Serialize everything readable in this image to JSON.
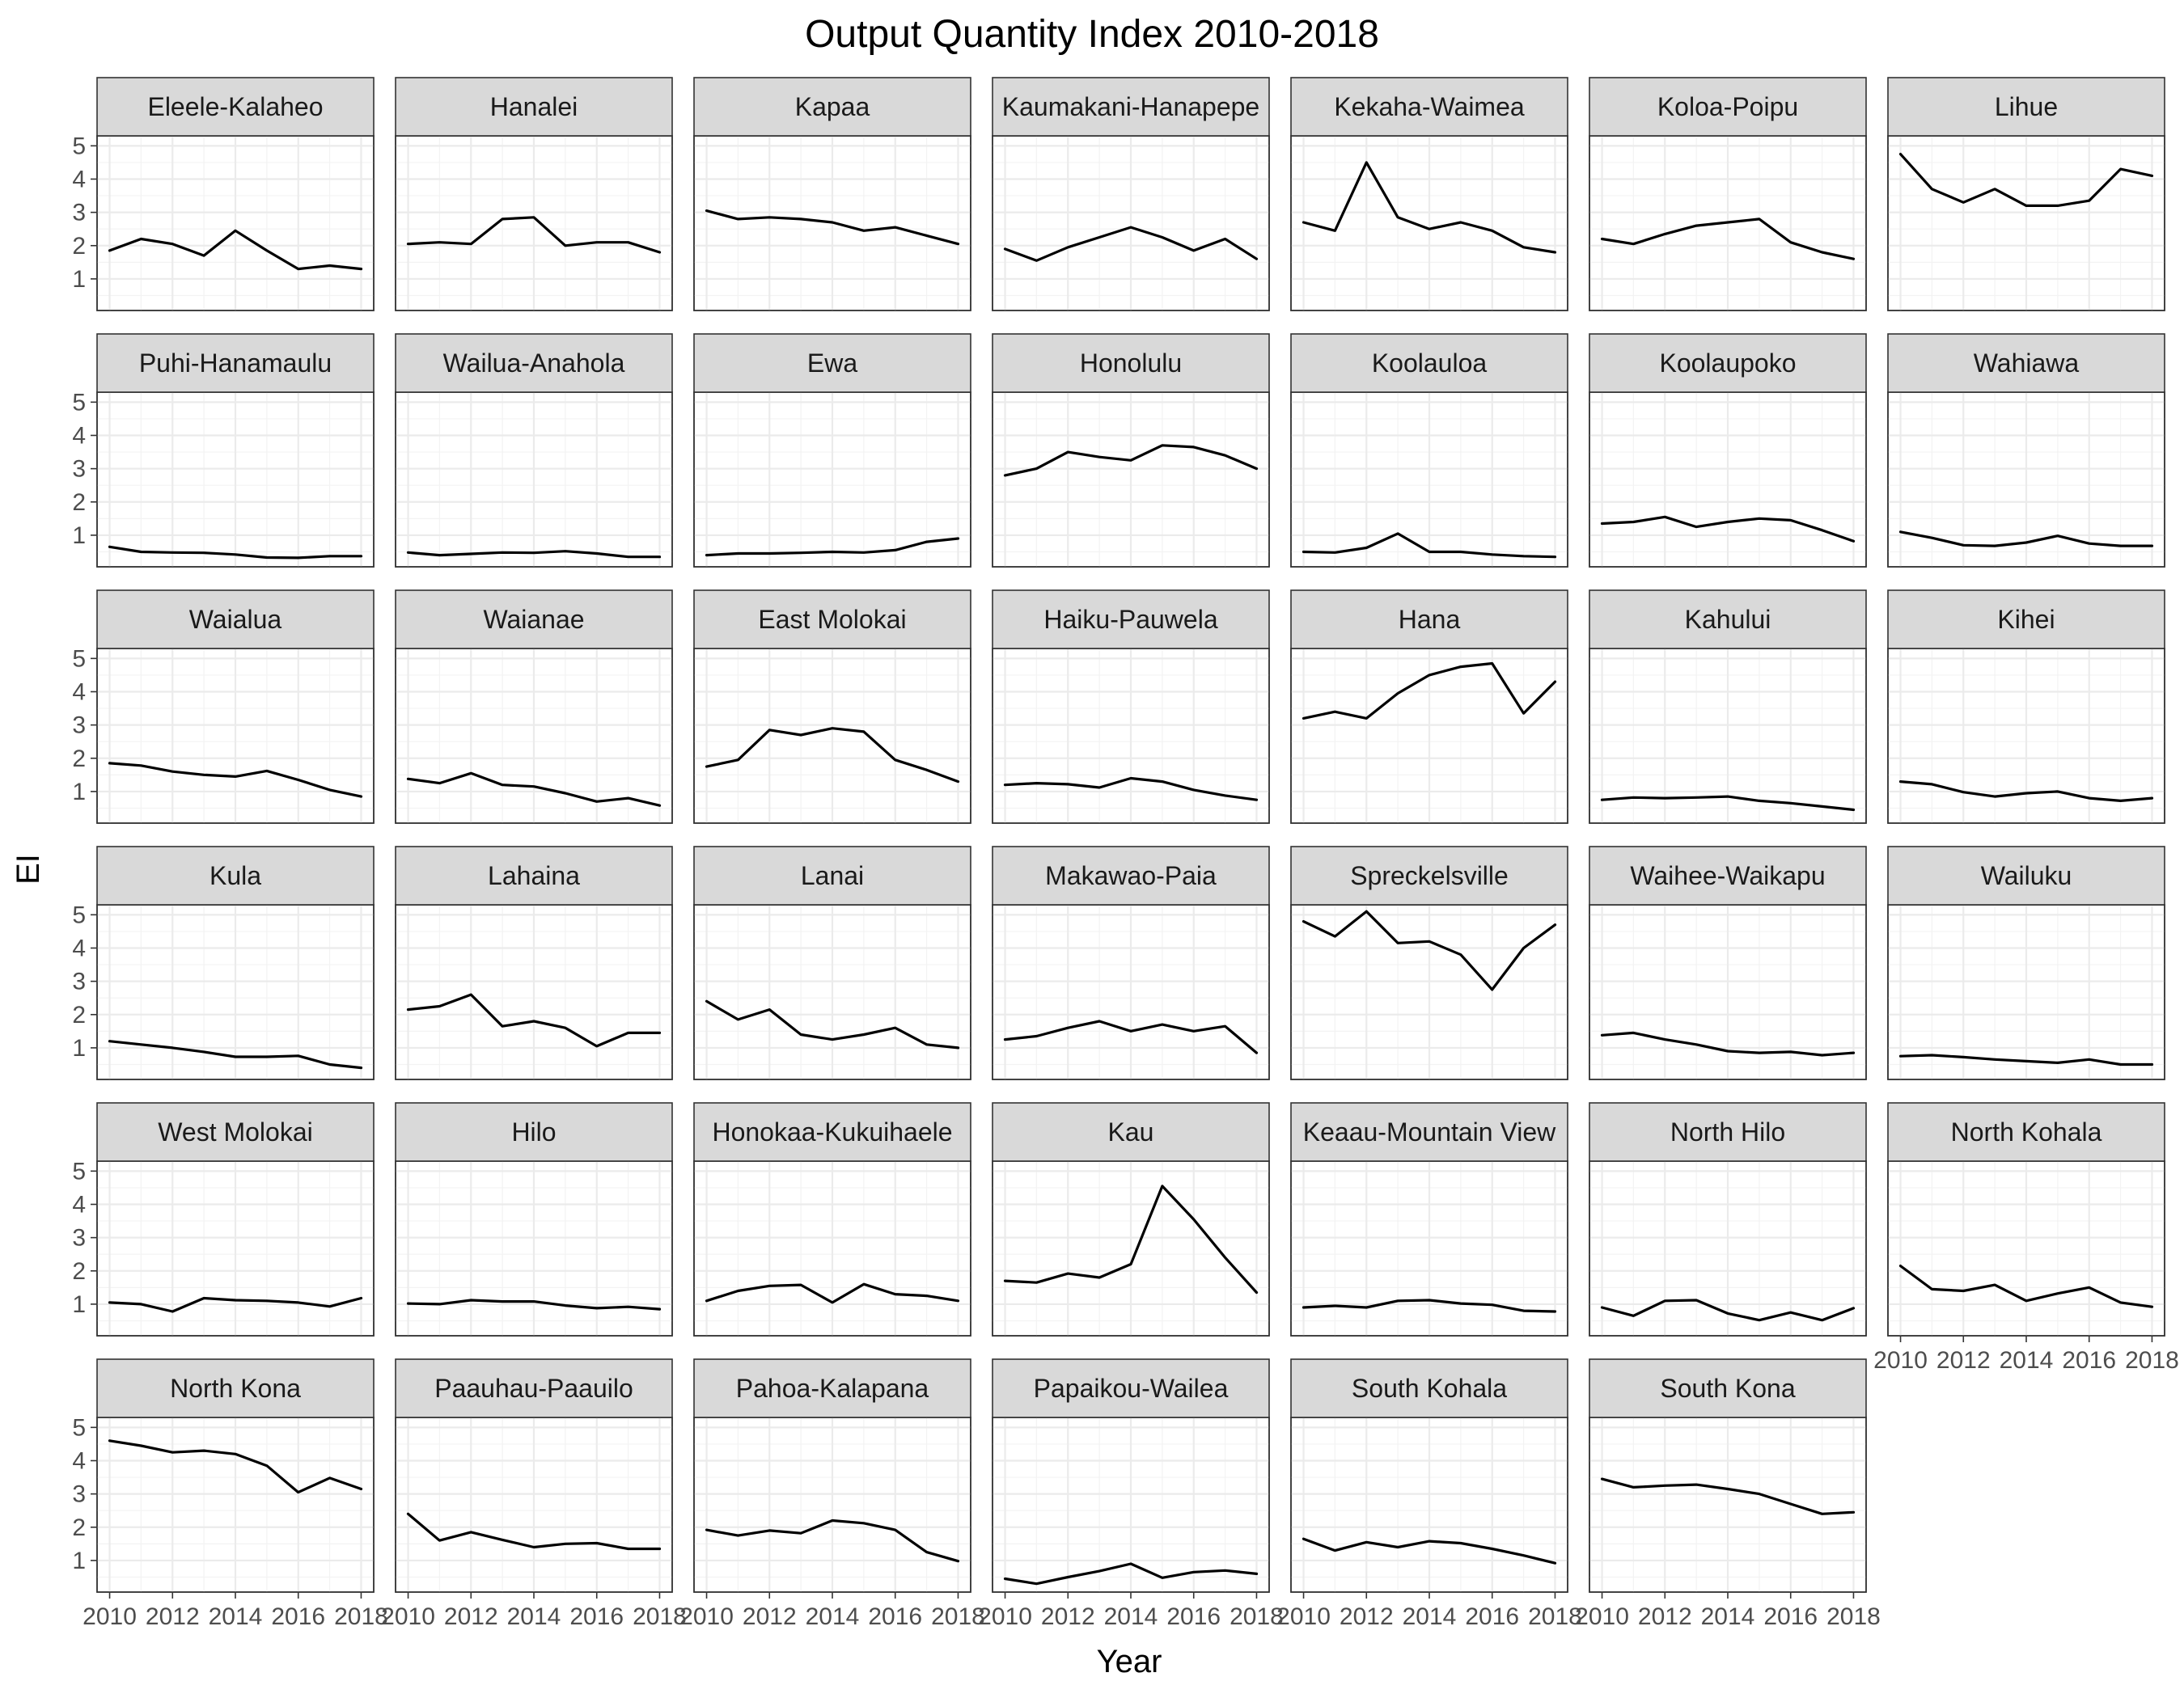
{
  "chart_data": {
    "type": "line",
    "title": "Output Quantity Index 2010-2018",
    "xlabel": "Year",
    "ylabel": "EI",
    "x": [
      2010,
      2011,
      2012,
      2013,
      2014,
      2015,
      2016,
      2017,
      2018
    ],
    "x_ticks": [
      2010,
      2012,
      2014,
      2016,
      2018
    ],
    "y_ticks": [
      1,
      2,
      3,
      4,
      5
    ],
    "xlim": [
      2009.6,
      2018.4
    ],
    "ylim": [
      0.05,
      5.3
    ],
    "layout": "facet_wrap, 7 columns, shared axes",
    "grid": true,
    "series": [
      {
        "name": "Eleele-Kalaheo",
        "values": [
          1.85,
          2.2,
          2.05,
          1.7,
          2.45,
          1.85,
          1.3,
          1.4,
          1.3
        ]
      },
      {
        "name": "Hanalei",
        "values": [
          2.05,
          2.1,
          2.05,
          2.8,
          2.85,
          2.0,
          2.1,
          2.1,
          1.8
        ]
      },
      {
        "name": "Kapaa",
        "values": [
          3.05,
          2.8,
          2.85,
          2.8,
          2.7,
          2.45,
          2.55,
          2.3,
          2.05
        ]
      },
      {
        "name": "Kaumakani-Hanapepe",
        "values": [
          1.9,
          1.55,
          1.95,
          2.25,
          2.55,
          2.25,
          1.85,
          2.2,
          1.6
        ]
      },
      {
        "name": "Kekaha-Waimea",
        "values": [
          2.7,
          2.45,
          4.5,
          2.85,
          2.5,
          2.7,
          2.45,
          1.95,
          1.8
        ]
      },
      {
        "name": "Koloa-Poipu",
        "values": [
          2.2,
          2.05,
          2.35,
          2.6,
          2.7,
          2.8,
          2.1,
          1.8,
          1.6
        ]
      },
      {
        "name": "Lihue",
        "values": [
          4.75,
          3.7,
          3.3,
          3.7,
          3.2,
          3.2,
          3.35,
          4.3,
          4.1
        ]
      },
      {
        "name": "Puhi-Hanamaulu",
        "values": [
          0.65,
          0.5,
          0.48,
          0.47,
          0.42,
          0.33,
          0.32,
          0.37,
          0.37
        ]
      },
      {
        "name": "Wailua-Anahola",
        "values": [
          0.48,
          0.4,
          0.44,
          0.48,
          0.47,
          0.52,
          0.45,
          0.35,
          0.35
        ]
      },
      {
        "name": "Ewa",
        "values": [
          0.4,
          0.45,
          0.45,
          0.47,
          0.5,
          0.48,
          0.55,
          0.8,
          0.9
        ]
      },
      {
        "name": "Honolulu",
        "values": [
          2.8,
          3.0,
          3.5,
          3.35,
          3.25,
          3.7,
          3.65,
          3.4,
          3.0
        ]
      },
      {
        "name": "Koolauloa",
        "values": [
          0.5,
          0.48,
          0.62,
          1.05,
          0.5,
          0.5,
          0.42,
          0.37,
          0.35
        ]
      },
      {
        "name": "Koolaupoko",
        "values": [
          1.35,
          1.4,
          1.55,
          1.25,
          1.4,
          1.5,
          1.45,
          1.15,
          0.82
        ]
      },
      {
        "name": "Wahiawa",
        "values": [
          1.1,
          0.92,
          0.7,
          0.68,
          0.78,
          0.98,
          0.75,
          0.68,
          0.68
        ]
      },
      {
        "name": "Waialua",
        "values": [
          1.85,
          1.78,
          1.6,
          1.5,
          1.45,
          1.62,
          1.35,
          1.05,
          0.85
        ]
      },
      {
        "name": "Waianae",
        "values": [
          1.38,
          1.25,
          1.55,
          1.2,
          1.15,
          0.95,
          0.7,
          0.8,
          0.58
        ]
      },
      {
        "name": "East Molokai",
        "values": [
          1.75,
          1.95,
          2.85,
          2.7,
          2.9,
          2.8,
          1.95,
          1.65,
          1.3
        ]
      },
      {
        "name": "Haiku-Pauwela",
        "values": [
          1.2,
          1.25,
          1.22,
          1.12,
          1.4,
          1.3,
          1.05,
          0.88,
          0.75
        ]
      },
      {
        "name": "Hana",
        "values": [
          3.2,
          3.4,
          3.2,
          3.95,
          4.5,
          4.75,
          4.85,
          3.35,
          4.3
        ]
      },
      {
        "name": "Kahului",
        "values": [
          0.75,
          0.82,
          0.8,
          0.82,
          0.85,
          0.72,
          0.65,
          0.55,
          0.45
        ]
      },
      {
        "name": "Kihei",
        "values": [
          1.3,
          1.22,
          0.98,
          0.85,
          0.95,
          1.0,
          0.8,
          0.72,
          0.8
        ]
      },
      {
        "name": "Kula",
        "values": [
          1.2,
          1.1,
          1.0,
          0.88,
          0.73,
          0.73,
          0.76,
          0.5,
          0.4
        ]
      },
      {
        "name": "Lahaina",
        "values": [
          2.15,
          2.25,
          2.6,
          1.65,
          1.8,
          1.6,
          1.05,
          1.45,
          1.45
        ]
      },
      {
        "name": "Lanai",
        "values": [
          2.4,
          1.85,
          2.15,
          1.4,
          1.25,
          1.4,
          1.6,
          1.1,
          1.0
        ]
      },
      {
        "name": "Makawao-Paia",
        "values": [
          1.25,
          1.35,
          1.6,
          1.8,
          1.5,
          1.7,
          1.5,
          1.65,
          0.85
        ]
      },
      {
        "name": "Spreckelsville",
        "values": [
          4.8,
          4.35,
          5.1,
          4.15,
          4.2,
          3.8,
          2.75,
          4.0,
          4.7
        ]
      },
      {
        "name": "Waihee-Waikapu",
        "values": [
          1.38,
          1.45,
          1.25,
          1.1,
          0.9,
          0.85,
          0.88,
          0.78,
          0.85
        ]
      },
      {
        "name": "Wailuku",
        "values": [
          0.75,
          0.78,
          0.72,
          0.65,
          0.6,
          0.55,
          0.65,
          0.5,
          0.5
        ]
      },
      {
        "name": "West Molokai",
        "values": [
          1.05,
          1.0,
          0.78,
          1.18,
          1.12,
          1.1,
          1.05,
          0.93,
          1.18
        ]
      },
      {
        "name": "Hilo",
        "values": [
          1.02,
          1.0,
          1.12,
          1.08,
          1.08,
          0.96,
          0.88,
          0.92,
          0.85
        ]
      },
      {
        "name": "Honokaa-Kukuihaele",
        "values": [
          1.1,
          1.4,
          1.55,
          1.58,
          1.05,
          1.6,
          1.3,
          1.25,
          1.1
        ]
      },
      {
        "name": "Kau",
        "values": [
          1.7,
          1.65,
          1.92,
          1.8,
          2.2,
          4.55,
          3.55,
          2.4,
          1.35
        ]
      },
      {
        "name": "Keaau-Mountain View",
        "values": [
          0.9,
          0.95,
          0.9,
          1.1,
          1.12,
          1.02,
          0.98,
          0.8,
          0.78
        ]
      },
      {
        "name": "North Hilo",
        "values": [
          0.9,
          0.65,
          1.1,
          1.12,
          0.72,
          0.52,
          0.75,
          0.52,
          0.88
        ]
      },
      {
        "name": "North Kohala",
        "values": [
          2.15,
          1.45,
          1.4,
          1.58,
          1.1,
          1.32,
          1.5,
          1.05,
          0.92
        ]
      },
      {
        "name": "North Kona",
        "values": [
          4.6,
          4.45,
          4.25,
          4.3,
          4.2,
          3.85,
          3.05,
          3.48,
          3.15
        ]
      },
      {
        "name": "Paauhau-Paauilo",
        "values": [
          2.4,
          1.6,
          1.85,
          1.62,
          1.4,
          1.5,
          1.52,
          1.35,
          1.35
        ]
      },
      {
        "name": "Pahoa-Kalapana",
        "values": [
          1.92,
          1.75,
          1.9,
          1.82,
          2.2,
          2.12,
          1.92,
          1.25,
          0.98
        ]
      },
      {
        "name": "Papaikou-Wailea",
        "values": [
          0.45,
          0.3,
          0.5,
          0.68,
          0.9,
          0.48,
          0.65,
          0.7,
          0.6
        ]
      },
      {
        "name": "South Kohala",
        "values": [
          1.65,
          1.3,
          1.55,
          1.4,
          1.58,
          1.52,
          1.35,
          1.15,
          0.92
        ]
      },
      {
        "name": "South Kona",
        "values": [
          3.45,
          3.2,
          3.25,
          3.28,
          3.15,
          3.0,
          2.7,
          2.4,
          2.45
        ]
      }
    ]
  }
}
